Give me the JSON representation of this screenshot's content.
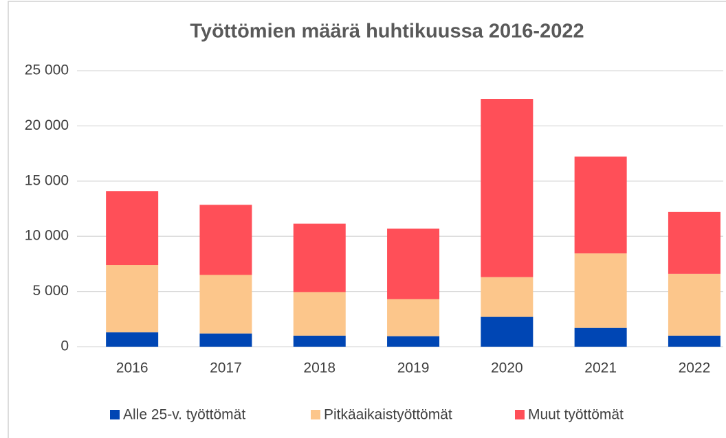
{
  "chart_data": {
    "type": "stacked_bar",
    "title": "Työttömien määrä huhtikuussa 2016-2022",
    "categories": [
      "2016",
      "2017",
      "2018",
      "2019",
      "2020",
      "2021",
      "2022"
    ],
    "series": [
      {
        "name": "Alle 25-v. työttömät",
        "color": "#0046b4",
        "values": [
          1300,
          1200,
          1000,
          950,
          2700,
          1700,
          1000
        ]
      },
      {
        "name": "Pitkäaikaistyöttömät",
        "color": "#fcc68b",
        "values": [
          6100,
          5300,
          3950,
          3350,
          3600,
          6750,
          5600
        ]
      },
      {
        "name": "Muut työttömät",
        "color": "#ff4f58",
        "values": [
          6700,
          6350,
          6200,
          6400,
          16150,
          8770,
          5600
        ]
      }
    ],
    "ylim": [
      0,
      25000
    ],
    "yticks": [
      0,
      {
        "value": 5000,
        "label": "5 000"
      },
      {
        "value": 10000,
        "label": "10 000"
      },
      {
        "value": 15000,
        "label": "15 000"
      },
      {
        "value": 20000,
        "label": "20 000"
      },
      {
        "value": 25000,
        "label": "25 000"
      }
    ],
    "grid": true,
    "legend": "bottom"
  }
}
